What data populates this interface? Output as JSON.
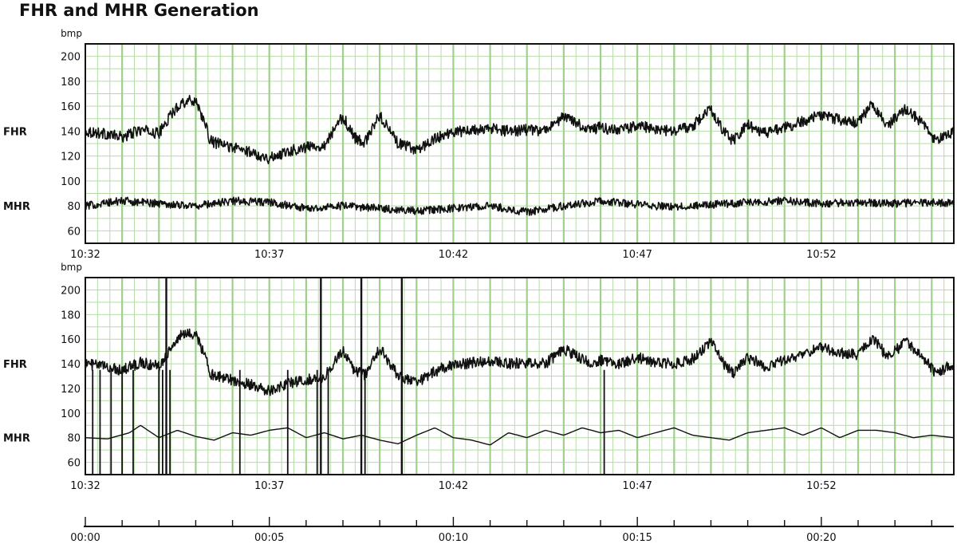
{
  "title": "FHR and MHR Generation",
  "chart_data": [
    {
      "type": "line",
      "name": "panel-top",
      "y_unit": "bmp",
      "y_ticks": [
        60,
        80,
        100,
        120,
        140,
        160,
        180,
        200
      ],
      "ylim": [
        50,
        210
      ],
      "x_ticks": [
        "10:32",
        "10:37",
        "10:42",
        "10:47",
        "10:52"
      ],
      "x_domain_minutes": [
        0,
        23.6
      ],
      "grid": true,
      "row_labels": [
        {
          "text": "FHR",
          "y": 140
        },
        {
          "text": "MHR",
          "y": 80
        }
      ],
      "series": [
        {
          "name": "FHR",
          "style": "noisy",
          "x": [
            0,
            0.5,
            1.0,
            1.5,
            2.0,
            2.3,
            2.6,
            3.0,
            3.2,
            3.4,
            3.6,
            4.0,
            4.5,
            5.0,
            5.5,
            6.0,
            6.5,
            7.0,
            7.3,
            7.6,
            8.0,
            8.5,
            9.0,
            9.4,
            9.8,
            10.3,
            11.0,
            11.5,
            12.0,
            12.5,
            13.0,
            13.7,
            14.0,
            14.5,
            15.0,
            15.5,
            16.0,
            16.5,
            17.0,
            17.3,
            17.6,
            18.0,
            18.5,
            19.0,
            19.5,
            20.0,
            20.5,
            21.0,
            21.4,
            21.8,
            22.3,
            22.7,
            23.1,
            23.6
          ],
          "y": [
            140,
            138,
            135,
            141,
            138,
            152,
            163,
            165,
            150,
            132,
            130,
            127,
            123,
            118,
            124,
            127,
            129,
            152,
            135,
            131,
            153,
            130,
            125,
            132,
            138,
            140,
            142,
            140,
            141,
            140,
            152,
            141,
            143,
            140,
            145,
            141,
            140,
            144,
            158,
            142,
            132,
            145,
            138,
            143,
            148,
            153,
            149,
            147,
            162,
            145,
            158,
            148,
            132,
            140
          ]
        },
        {
          "name": "MHR",
          "style": "noisy",
          "x": [
            0,
            1,
            2,
            3,
            4,
            5,
            6,
            7,
            8,
            9,
            10,
            11,
            12,
            13,
            14,
            15,
            16,
            17,
            18,
            19,
            20,
            21,
            22,
            23,
            23.6
          ],
          "y": [
            80,
            84,
            82,
            80,
            84,
            83,
            78,
            80,
            78,
            76,
            78,
            80,
            75,
            80,
            84,
            81,
            79,
            81,
            83,
            84,
            82,
            83,
            82,
            83,
            82
          ]
        }
      ]
    },
    {
      "type": "line",
      "name": "panel-bottom",
      "y_unit": "bmp",
      "y_ticks": [
        60,
        80,
        100,
        120,
        140,
        160,
        180,
        200
      ],
      "ylim": [
        50,
        210
      ],
      "x_ticks": [
        "10:32",
        "10:37",
        "10:42",
        "10:47",
        "10:52"
      ],
      "x_domain_minutes": [
        0,
        23.6
      ],
      "grid": true,
      "row_labels": [
        {
          "text": "FHR",
          "y": 140
        },
        {
          "text": "MHR",
          "y": 80
        }
      ],
      "event_markers_minutes": [
        0.2,
        0.4,
        0.7,
        1.0,
        1.3,
        2.0,
        2.1,
        2.2,
        2.3,
        4.2,
        5.5,
        6.3,
        6.6,
        7.6,
        8.6,
        14.1
      ],
      "event_lines_minutes": [
        2.2,
        6.4,
        7.5,
        8.6
      ],
      "series": [
        {
          "name": "FHR",
          "style": "noisy",
          "x": [
            0,
            0.5,
            1.0,
            1.5,
            2.0,
            2.3,
            2.6,
            3.0,
            3.2,
            3.4,
            3.6,
            4.0,
            4.5,
            5.0,
            5.5,
            6.0,
            6.5,
            7.0,
            7.3,
            7.6,
            8.0,
            8.5,
            9.0,
            9.4,
            9.8,
            10.3,
            11.0,
            11.5,
            12.0,
            12.5,
            13.0,
            13.7,
            14.0,
            14.5,
            15.0,
            15.5,
            16.0,
            16.5,
            17.0,
            17.3,
            17.6,
            18.0,
            18.5,
            19.0,
            19.5,
            20.0,
            20.5,
            21.0,
            21.4,
            21.8,
            22.3,
            22.7,
            23.1,
            23.6
          ],
          "y": [
            140,
            138,
            135,
            141,
            138,
            152,
            163,
            165,
            150,
            132,
            130,
            127,
            123,
            118,
            124,
            127,
            129,
            152,
            135,
            131,
            153,
            130,
            125,
            132,
            138,
            140,
            142,
            140,
            141,
            140,
            152,
            141,
            143,
            140,
            145,
            141,
            140,
            144,
            158,
            142,
            132,
            145,
            138,
            143,
            148,
            153,
            149,
            147,
            162,
            145,
            158,
            148,
            132,
            140
          ]
        },
        {
          "name": "MHR",
          "style": "smooth",
          "x": [
            0,
            0.6,
            1.2,
            1.5,
            2.0,
            2.5,
            3.0,
            3.5,
            4.0,
            4.5,
            5.0,
            5.5,
            6.0,
            6.5,
            7.0,
            7.5,
            8.0,
            8.5,
            9.0,
            9.5,
            10.0,
            10.5,
            11.0,
            11.5,
            12.0,
            12.5,
            13.0,
            13.5,
            14.0,
            14.5,
            15.0,
            15.5,
            16.0,
            16.5,
            17.0,
            17.5,
            18.0,
            18.5,
            19.0,
            19.5,
            20.0,
            20.5,
            21.0,
            21.5,
            22.0,
            22.5,
            23.0,
            23.6
          ],
          "y": [
            80,
            79,
            84,
            90,
            80,
            86,
            81,
            78,
            84,
            82,
            86,
            88,
            80,
            84,
            79,
            82,
            78,
            75,
            82,
            88,
            80,
            78,
            74,
            84,
            80,
            86,
            82,
            88,
            84,
            86,
            80,
            84,
            88,
            82,
            80,
            78,
            84,
            86,
            88,
            82,
            88,
            80,
            86,
            86,
            84,
            80,
            82,
            80
          ]
        }
      ]
    }
  ],
  "timeline": {
    "ticks": [
      "00:00",
      "00:05",
      "00:10",
      "00:15",
      "00:20"
    ],
    "domain_minutes": [
      0,
      23.6
    ]
  }
}
